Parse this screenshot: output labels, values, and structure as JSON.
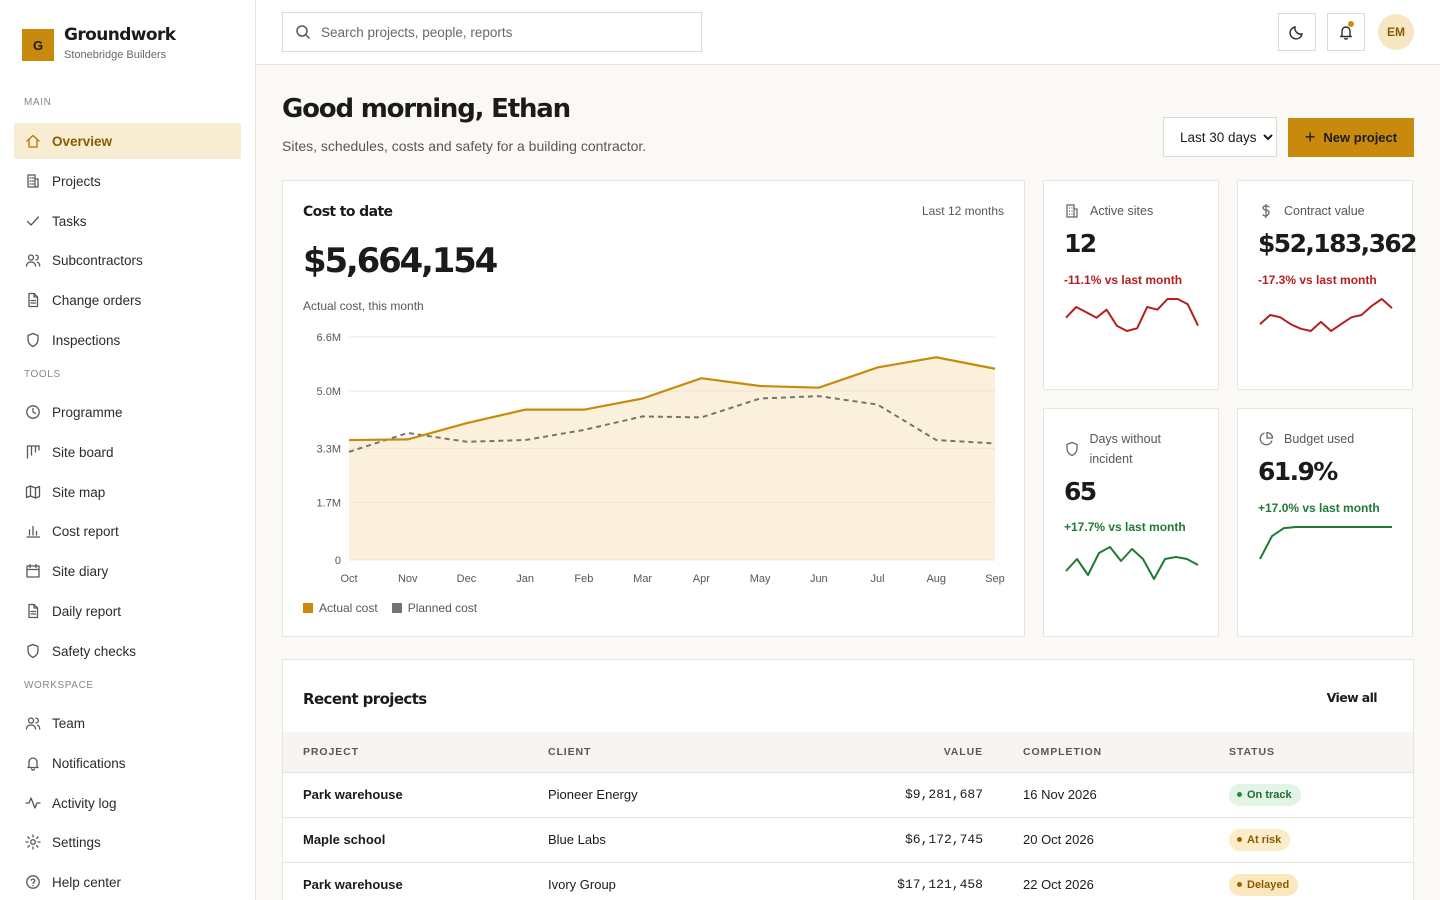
{
  "brand": {
    "logo_letter": "G",
    "name": "Groundwork",
    "company": "Stonebridge Builders"
  },
  "sidebar": {
    "sections": [
      {
        "label": "MAIN",
        "items": [
          {
            "label": "Overview",
            "icon": "home-icon",
            "active": true
          },
          {
            "label": "Projects",
            "icon": "building-icon"
          },
          {
            "label": "Tasks",
            "icon": "check-icon"
          },
          {
            "label": "Subcontractors",
            "icon": "users-icon"
          },
          {
            "label": "Change orders",
            "icon": "document-icon"
          },
          {
            "label": "Inspections",
            "icon": "shield-icon"
          }
        ]
      },
      {
        "label": "TOOLS",
        "items": [
          {
            "label": "Programme",
            "icon": "clock-icon"
          },
          {
            "label": "Site board",
            "icon": "kanban-icon"
          },
          {
            "label": "Site map",
            "icon": "map-icon"
          },
          {
            "label": "Cost report",
            "icon": "bar-chart-icon"
          },
          {
            "label": "Site diary",
            "icon": "calendar-icon"
          },
          {
            "label": "Daily report",
            "icon": "file-text-icon"
          },
          {
            "label": "Safety checks",
            "icon": "shield-icon"
          }
        ]
      },
      {
        "label": "WORKSPACE",
        "items": [
          {
            "label": "Team",
            "icon": "users-icon"
          },
          {
            "label": "Notifications",
            "icon": "bell-icon"
          },
          {
            "label": "Activity log",
            "icon": "activity-icon"
          },
          {
            "label": "Settings",
            "icon": "gear-icon"
          },
          {
            "label": "Help center",
            "icon": "help-circle-icon"
          }
        ]
      }
    ]
  },
  "topbar": {
    "search_placeholder": "Search projects, people, reports",
    "avatar_initials": "EM"
  },
  "header": {
    "greeting": "Good morning, Ethan",
    "subtitle": "Sites, schedules, costs and safety for a building contractor.",
    "range_options": [
      "Last 30 days"
    ],
    "range_selected": "Last 30 days",
    "new_project_label": "New project"
  },
  "cost_card": {
    "title": "Cost to date",
    "period": "Last 12 months",
    "value": "$5,664,154",
    "caption": "Actual cost, this month"
  },
  "chart_data": {
    "type": "area",
    "x": [
      "Oct",
      "Nov",
      "Dec",
      "Jan",
      "Feb",
      "Mar",
      "Apr",
      "May",
      "Jun",
      "Jul",
      "Aug",
      "Sep"
    ],
    "ylim": [
      0,
      6.6
    ],
    "yticks": [
      0,
      1.7,
      3.3,
      5.0,
      6.6
    ],
    "ytick_labels": [
      "0",
      "1.7M",
      "3.3M",
      "5.0M",
      "6.6M"
    ],
    "grid": true,
    "legend_position": "bottom-left",
    "series": [
      {
        "name": "Actual cost",
        "color": "#c88a0c",
        "style": "solid-filled",
        "values": [
          3.55,
          3.57,
          4.05,
          4.45,
          4.45,
          4.78,
          5.38,
          5.15,
          5.1,
          5.7,
          6.0,
          5.66
        ]
      },
      {
        "name": "Planned cost",
        "color": "#7a736b",
        "style": "dashed",
        "values": [
          3.2,
          3.76,
          3.5,
          3.55,
          3.85,
          4.25,
          4.22,
          4.78,
          4.85,
          4.6,
          3.55,
          3.45
        ]
      }
    ]
  },
  "kpis": [
    {
      "label": "Active sites",
      "icon": "building-icon",
      "value": "12",
      "delta": "-11.1% vs last month",
      "trend": "negative",
      "color": "#b3201f",
      "spark": [
        5,
        9,
        7,
        5,
        8,
        2,
        0,
        1,
        9,
        8,
        12,
        12,
        10,
        2
      ]
    },
    {
      "label": "Contract value",
      "icon": "dollar-icon",
      "value": "$52,183,362",
      "delta": "-17.3% vs last month",
      "trend": "negative",
      "color": "#b3201f",
      "spark": [
        3,
        7,
        6,
        3,
        1,
        0,
        4,
        0,
        3,
        6,
        7,
        11,
        14,
        10
      ]
    },
    {
      "label": "Days without incident",
      "icon": "shield-icon",
      "value": "65",
      "delta": "+17.7% vs last month",
      "trend": "positive",
      "color": "#1f7a34",
      "spark": [
        5,
        11,
        3,
        14,
        17,
        10,
        16,
        11,
        1,
        11,
        12,
        11,
        8
      ]
    },
    {
      "label": "Budget used",
      "icon": "pie-chart-icon",
      "value": "61.9%",
      "delta": "+17.0% vs last month",
      "trend": "positive",
      "color": "#1f7a34",
      "spark": [
        0,
        20,
        27,
        28,
        28,
        28,
        28,
        28,
        28,
        28,
        28,
        28
      ]
    }
  ],
  "recent_projects": {
    "title": "Recent projects",
    "view_all": "View all",
    "columns": [
      "PROJECT",
      "CLIENT",
      "VALUE",
      "COMPLETION",
      "STATUS"
    ],
    "rows": [
      {
        "project": "Park warehouse",
        "client": "Pioneer Energy",
        "value": "$9,281,687",
        "completion": "16 Nov 2026",
        "status": "On track",
        "status_kind": "ok"
      },
      {
        "project": "Maple school",
        "client": "Blue Labs",
        "value": "$6,172,745",
        "completion": "20 Oct 2026",
        "status": "At risk",
        "status_kind": "risk"
      },
      {
        "project": "Park warehouse",
        "client": "Ivory Group",
        "value": "$17,121,458",
        "completion": "22 Oct 2026",
        "status": "Delayed",
        "status_kind": "delay"
      }
    ]
  }
}
